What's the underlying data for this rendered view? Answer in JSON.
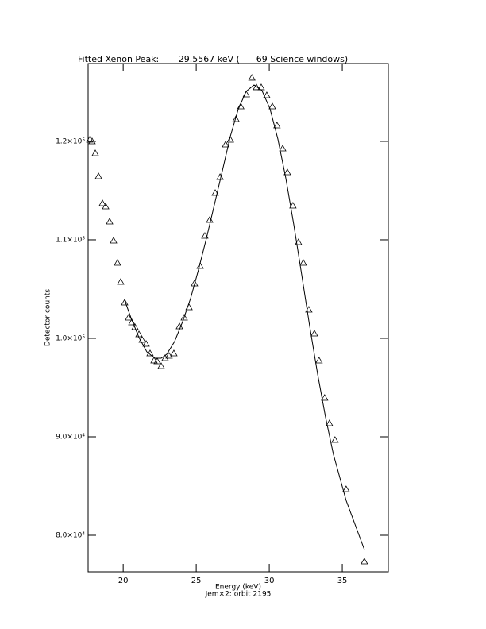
{
  "chart_data": {
    "type": "scatter",
    "title": "Fitted Xenon Peak:       29.5567 keV (      69 Science windows)",
    "x_label": "Energy (keV)",
    "subtitle": "Jem×2: orbit 2195",
    "y_label": "Detector counts",
    "xlim": [
      17.6,
      38.15
    ],
    "ylim": [
      76290,
      127900
    ],
    "xticks": [
      20,
      25,
      30,
      35
    ],
    "yticks": [
      {
        "value": 80000,
        "label": "8.0×10⁴"
      },
      {
        "value": 90000,
        "label": "9.0×10⁴"
      },
      {
        "value": 100000,
        "label": "1.0×10⁵"
      },
      {
        "value": 110000,
        "label": "1.1×10⁵"
      },
      {
        "value": 120000,
        "label": "1.2×10⁵"
      }
    ],
    "series": [
      {
        "style": "triangle",
        "color": "#000000",
        "x": [
          17.71,
          17.87,
          18.09,
          18.31,
          18.58,
          18.8,
          19.07,
          19.34,
          19.61,
          19.83,
          20.1,
          20.37,
          20.59,
          20.81,
          21.08,
          21.3,
          21.57,
          21.84,
          22.11,
          22.33,
          22.6,
          22.87,
          23.14,
          23.47,
          23.85,
          24.18,
          24.51,
          24.88,
          25.27,
          25.59,
          25.92,
          26.3,
          26.63,
          27.01,
          27.34,
          27.72,
          28.05,
          28.43,
          28.81,
          29.12,
          29.45,
          29.83,
          30.21,
          30.53,
          30.92,
          31.24,
          31.62,
          32.0,
          32.33,
          32.71,
          33.09,
          33.41,
          33.79,
          34.12,
          34.5,
          35.26,
          36.51
        ],
        "values": [
          120161,
          120000,
          118790,
          116452,
          113710,
          113387,
          111855,
          109919,
          107661,
          105726,
          103629,
          102097,
          101613,
          101129,
          100403,
          99839,
          99435,
          98468,
          97742,
          97661,
          97177,
          97984,
          98226,
          98468,
          101210,
          102097,
          103145,
          105565,
          107339,
          110403,
          112016,
          114758,
          116371,
          119677,
          120161,
          122258,
          123548,
          124758,
          126452,
          125484,
          125484,
          124677,
          123548,
          121613,
          119274,
          116855,
          113468,
          109758,
          107661,
          102903,
          100484,
          97742,
          93952,
          91371,
          89677,
          84677,
          77339
        ]
      },
      {
        "style": "line",
        "color": "#000000",
        "x": [
          20.1,
          20.53,
          21.08,
          21.62,
          22.17,
          22.6,
          22.98,
          23.52,
          24.07,
          24.61,
          25.15,
          25.7,
          26.24,
          26.79,
          27.33,
          27.87,
          28.42,
          28.96,
          29.5,
          30.05,
          30.59,
          31.13,
          31.68,
          32.22,
          32.76,
          33.31,
          33.85,
          34.39,
          35.26,
          36.51
        ],
        "values": [
          103871,
          102097,
          100081,
          98629,
          97984,
          97984,
          98387,
          99677,
          101694,
          104032,
          106935,
          110161,
          113548,
          117016,
          120484,
          123226,
          125081,
          125726,
          125161,
          123306,
          120242,
          116290,
          111532,
          106452,
          101290,
          96371,
          92016,
          88226,
          83548,
          78548
        ]
      }
    ]
  }
}
